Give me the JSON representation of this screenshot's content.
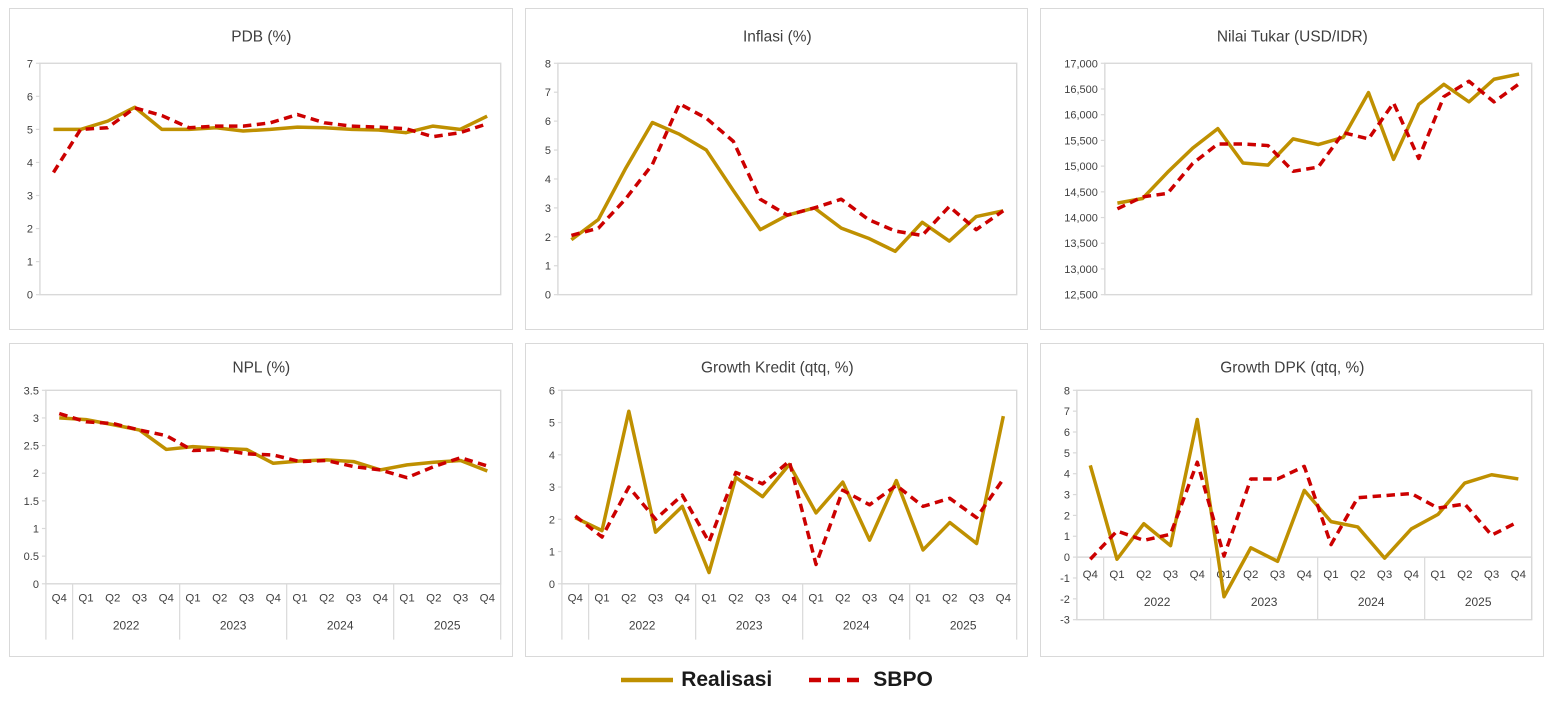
{
  "page": {
    "background": "#FFFFFF"
  },
  "colors": {
    "realisasi": "#BF9000",
    "sbpo": "#CC0000",
    "panel_border": "#D9D9D9",
    "axis_line": "#D9D9D9",
    "tick_text": "#404040",
    "title_text": "#3F3F3F",
    "legend_text": "#1A1A1A"
  },
  "legend": {
    "items": [
      {
        "label": "Realisasi",
        "color": "#BF9000",
        "style": "solid"
      },
      {
        "label": "SBPO",
        "color": "#CC0000",
        "style": "dashed"
      }
    ]
  },
  "x_axis": {
    "quarters": [
      "Q4",
      "Q1",
      "Q2",
      "Q3",
      "Q4",
      "Q1",
      "Q2",
      "Q3",
      "Q4",
      "Q1",
      "Q2",
      "Q3",
      "Q4",
      "Q1",
      "Q2",
      "Q3",
      "Q4"
    ],
    "year_groups": [
      {
        "label": "",
        "span": 1
      },
      {
        "label": "2022",
        "span": 4
      },
      {
        "label": "2023",
        "span": 4
      },
      {
        "label": "2024",
        "span": 4
      },
      {
        "label": "2025",
        "span": 4
      }
    ]
  },
  "chart_data": [
    {
      "type": "line",
      "title": "PDB (%)",
      "ylim": [
        0,
        7
      ],
      "ytick_step": 1,
      "ytick_format": "plain",
      "grid": false,
      "x_axis_labels": "none",
      "legend_position": "shared-bottom",
      "series": [
        {
          "name": "Realisasi",
          "values": [
            5.0,
            5.0,
            5.25,
            5.67,
            5.0,
            5.0,
            5.05,
            4.95,
            5.0,
            5.07,
            5.05,
            5.0,
            4.98,
            4.9,
            5.1,
            5.0,
            5.4
          ]
        },
        {
          "name": "SBPO",
          "values": [
            3.7,
            5.0,
            5.05,
            5.65,
            5.42,
            5.05,
            5.1,
            5.1,
            5.2,
            5.45,
            5.2,
            5.1,
            5.07,
            5.02,
            4.78,
            4.9,
            5.17
          ]
        }
      ]
    },
    {
      "type": "line",
      "title": "Inflasi (%)",
      "ylim": [
        0,
        8
      ],
      "ytick_step": 1,
      "ytick_format": "plain",
      "grid": false,
      "x_axis_labels": "none",
      "legend_position": "shared-bottom",
      "series": [
        {
          "name": "Realisasi",
          "values": [
            1.9,
            2.6,
            4.35,
            5.95,
            5.55,
            5.0,
            3.6,
            2.25,
            2.75,
            3.0,
            2.3,
            1.95,
            1.5,
            2.5,
            1.85,
            2.7,
            2.9
          ]
        },
        {
          "name": "SBPO",
          "values": [
            2.05,
            2.3,
            3.3,
            4.5,
            6.6,
            6.1,
            5.3,
            3.3,
            2.75,
            3.0,
            3.3,
            2.6,
            2.2,
            2.05,
            3.05,
            2.25,
            2.9
          ]
        }
      ]
    },
    {
      "type": "line",
      "title": "Nilai Tukar (USD/IDR)",
      "ylim": [
        12500,
        17000
      ],
      "ytick_step": 500,
      "ytick_format": "comma",
      "grid": false,
      "x_axis_labels": "none",
      "legend_position": "shared-bottom",
      "series": [
        {
          "name": "Realisasi",
          "values": [
            14280,
            14370,
            14880,
            15350,
            15730,
            15060,
            15020,
            15530,
            15420,
            15560,
            16430,
            15130,
            16200,
            16590,
            16250,
            16690,
            16790
          ]
        },
        {
          "name": "SBPO",
          "values": [
            14170,
            14400,
            14470,
            15050,
            15430,
            15430,
            15400,
            14900,
            14980,
            15650,
            15530,
            16230,
            15150,
            16350,
            16650,
            16250,
            16600
          ]
        }
      ]
    },
    {
      "type": "line",
      "title": "NPL (%)",
      "ylim": [
        0,
        3.5
      ],
      "ytick_step": 0.5,
      "ytick_format": "plain",
      "grid": false,
      "x_axis_labels": "below",
      "legend_position": "shared-bottom",
      "series": [
        {
          "name": "Realisasi",
          "values": [
            3.0,
            2.97,
            2.88,
            2.78,
            2.43,
            2.48,
            2.45,
            2.43,
            2.18,
            2.22,
            2.24,
            2.21,
            2.06,
            2.15,
            2.2,
            2.23,
            2.04
          ]
        },
        {
          "name": "SBPO",
          "values": [
            3.08,
            2.93,
            2.9,
            2.78,
            2.68,
            2.41,
            2.43,
            2.35,
            2.33,
            2.21,
            2.23,
            2.12,
            2.06,
            1.92,
            2.12,
            2.28,
            2.13
          ]
        }
      ]
    },
    {
      "type": "line",
      "title": "Growth Kredit (qtq, %)",
      "ylim": [
        0,
        6
      ],
      "ytick_step": 1,
      "ytick_format": "plain",
      "grid": false,
      "x_axis_labels": "below",
      "legend_position": "shared-bottom",
      "series": [
        {
          "name": "Realisasi",
          "values": [
            2.05,
            1.65,
            5.35,
            1.6,
            2.4,
            0.35,
            3.3,
            2.7,
            3.7,
            2.2,
            3.15,
            1.35,
            3.2,
            1.05,
            1.9,
            1.25,
            5.2
          ]
        },
        {
          "name": "SBPO",
          "values": [
            2.1,
            1.45,
            3.0,
            2.0,
            2.75,
            1.3,
            3.45,
            3.1,
            3.8,
            0.6,
            2.9,
            2.45,
            3.05,
            2.4,
            2.65,
            2.05,
            3.25
          ]
        }
      ]
    },
    {
      "type": "line",
      "title": "Growth DPK (qtq, %)",
      "ylim": [
        -3,
        8
      ],
      "ytick_step": 1,
      "ytick_format": "plain",
      "grid": false,
      "x_axis_labels": "inside",
      "legend_position": "shared-bottom",
      "series": [
        {
          "name": "Realisasi",
          "values": [
            4.4,
            -0.1,
            1.6,
            0.55,
            6.6,
            -1.9,
            0.45,
            -0.2,
            3.2,
            1.7,
            1.45,
            -0.05,
            1.35,
            2.05,
            3.55,
            3.95,
            3.75
          ]
        },
        {
          "name": "SBPO",
          "values": [
            -0.1,
            1.25,
            0.8,
            1.1,
            4.55,
            0.05,
            3.75,
            3.75,
            4.35,
            0.6,
            2.85,
            2.95,
            3.05,
            2.35,
            2.55,
            1.05,
            1.7
          ]
        }
      ]
    }
  ]
}
